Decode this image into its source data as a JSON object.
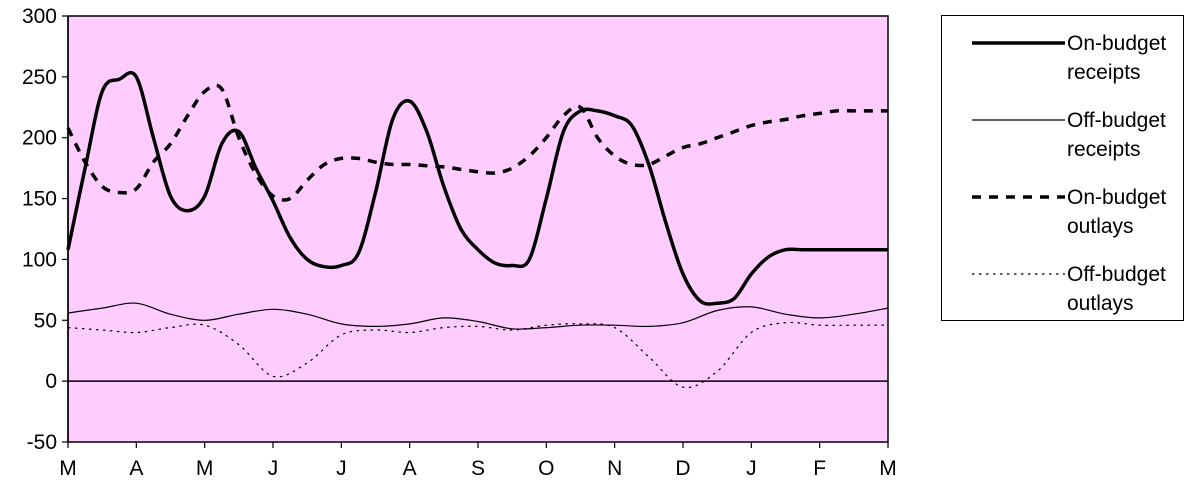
{
  "chart_data": {
    "type": "line",
    "title": "",
    "xlabel": "",
    "ylabel": "",
    "categories": [
      "M",
      "A",
      "M",
      "J",
      "J",
      "A",
      "S",
      "O",
      "N",
      "D",
      "J",
      "F",
      "M"
    ],
    "yticks": [
      300,
      250,
      200,
      150,
      100,
      50,
      0,
      -50
    ],
    "ylim": [
      -50,
      300
    ],
    "plot_background": "#FFCCFF",
    "grid": false,
    "legend_position": "right",
    "series": [
      {
        "name": "On-budget receipts",
        "style": "thick-solid",
        "x": [
          0,
          0.25,
          0.5,
          0.75,
          1,
          1.25,
          1.5,
          1.75,
          2,
          2.25,
          2.5,
          2.75,
          3,
          3.25,
          3.5,
          3.75,
          4,
          4.25,
          4.5,
          4.75,
          5,
          5.25,
          5.5,
          5.75,
          6,
          6.25,
          6.5,
          6.75,
          7,
          7.25,
          7.5,
          7.75,
          8,
          8.25,
          8.5,
          8.75,
          9,
          9.25,
          9.5,
          9.75,
          10,
          10.25,
          10.5,
          10.75,
          11,
          11.25,
          11.5,
          11.75,
          12
        ],
        "values": [
          108,
          175,
          238,
          248,
          250,
          200,
          152,
          140,
          152,
          195,
          205,
          175,
          148,
          118,
          100,
          94,
          95,
          105,
          155,
          215,
          230,
          205,
          160,
          125,
          108,
          97,
          95,
          100,
          150,
          205,
          222,
          222,
          218,
          210,
          178,
          130,
          88,
          66,
          64,
          68,
          88,
          102,
          108,
          108,
          108,
          108,
          108,
          108,
          108
        ]
      },
      {
        "name": "Off-budget receipts",
        "style": "thin-solid",
        "x": [
          0,
          0.5,
          1,
          1.5,
          2,
          2.5,
          3,
          3.5,
          4,
          4.5,
          5,
          5.5,
          6,
          6.5,
          7,
          7.5,
          8,
          8.5,
          9,
          9.5,
          10,
          10.5,
          11,
          11.5,
          12
        ],
        "values": [
          56,
          60,
          64,
          55,
          50,
          55,
          59,
          55,
          47,
          45,
          47,
          52,
          49,
          43,
          44,
          46,
          46,
          45,
          48,
          58,
          61,
          55,
          52,
          55,
          60
        ]
      },
      {
        "name": "On-budget outlays",
        "style": "thick-dashed",
        "x": [
          0,
          0.25,
          0.5,
          0.75,
          1,
          1.25,
          1.5,
          1.75,
          2,
          2.25,
          2.5,
          2.75,
          3,
          3.25,
          3.5,
          3.75,
          4,
          4.25,
          4.5,
          4.75,
          5,
          5.25,
          5.5,
          5.75,
          6,
          6.25,
          6.5,
          6.75,
          7,
          7.25,
          7.5,
          7.75,
          8,
          8.25,
          8.5,
          8.75,
          9,
          9.25,
          9.5,
          9.75,
          10,
          10.25,
          10.5,
          10.75,
          11,
          11.25,
          11.5,
          11.75,
          12
        ],
        "values": [
          208,
          180,
          160,
          155,
          158,
          180,
          195,
          218,
          238,
          240,
          200,
          170,
          152,
          150,
          165,
          178,
          183,
          183,
          180,
          178,
          178,
          177,
          176,
          174,
          172,
          171,
          175,
          185,
          200,
          218,
          225,
          200,
          185,
          178,
          178,
          185,
          192,
          195,
          200,
          205,
          210,
          213,
          215,
          218,
          220,
          222,
          222,
          222,
          222
        ]
      },
      {
        "name": "Off-budget outlays",
        "style": "thin-dotted",
        "x": [
          0,
          0.5,
          1,
          1.5,
          2,
          2.5,
          3,
          3.5,
          4,
          4.5,
          5,
          5.5,
          6,
          6.5,
          7,
          7.5,
          8,
          8.5,
          9,
          9.5,
          10,
          10.5,
          11,
          11.5,
          12
        ],
        "values": [
          44,
          42,
          40,
          44,
          46,
          30,
          4,
          15,
          38,
          42,
          40,
          44,
          45,
          42,
          46,
          47,
          44,
          20,
          -5,
          8,
          40,
          48,
          46,
          46,
          46
        ]
      }
    ]
  }
}
